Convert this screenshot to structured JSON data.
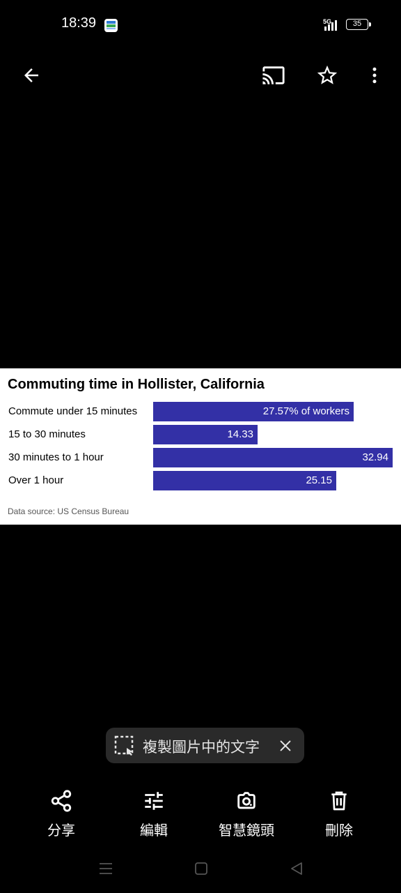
{
  "status_bar": {
    "time": "18:39",
    "network": "5G",
    "battery": "35"
  },
  "top_bar": {
    "icons": [
      "back-arrow-icon",
      "cast-icon",
      "star-icon",
      "more-vert-icon"
    ]
  },
  "chart": {
    "title": "Commuting time in Hollister, California",
    "source": "Data source: US Census Bureau",
    "rows": [
      {
        "label": "Commute under 15 minutes",
        "value_label": "27.57% of workers"
      },
      {
        "label": "15 to 30 minutes",
        "value_label": "14.33"
      },
      {
        "label": "30 minutes to 1 hour",
        "value_label": "32.94"
      },
      {
        "label": "Over 1 hour",
        "value_label": "25.15"
      }
    ]
  },
  "chart_data": {
    "type": "bar",
    "orientation": "horizontal",
    "title": "Commuting time in Hollister, California",
    "categories": [
      "Commute under 15 minutes",
      "15 to 30 minutes",
      "30 minutes to 1 hour",
      "Over 1 hour"
    ],
    "values": [
      27.57,
      14.33,
      32.94,
      25.15
    ],
    "unit": "% of workers",
    "xlim": [
      0,
      32.94
    ],
    "grid": false,
    "bar_color": "#3330a6",
    "source": "Data source: US Census Bureau"
  },
  "lens_chip": {
    "text": "複製圖片中的文字"
  },
  "actions": [
    {
      "icon": "share-icon",
      "label": "分享"
    },
    {
      "icon": "edit-sliders-icon",
      "label": "編輯"
    },
    {
      "icon": "lens-icon",
      "label": "智慧鏡頭"
    },
    {
      "icon": "trash-icon",
      "label": "刪除"
    }
  ],
  "colors": {
    "background": "#000000",
    "card": "#ffffff",
    "bar": "#3330a6",
    "chip": "#2a2a2a"
  }
}
